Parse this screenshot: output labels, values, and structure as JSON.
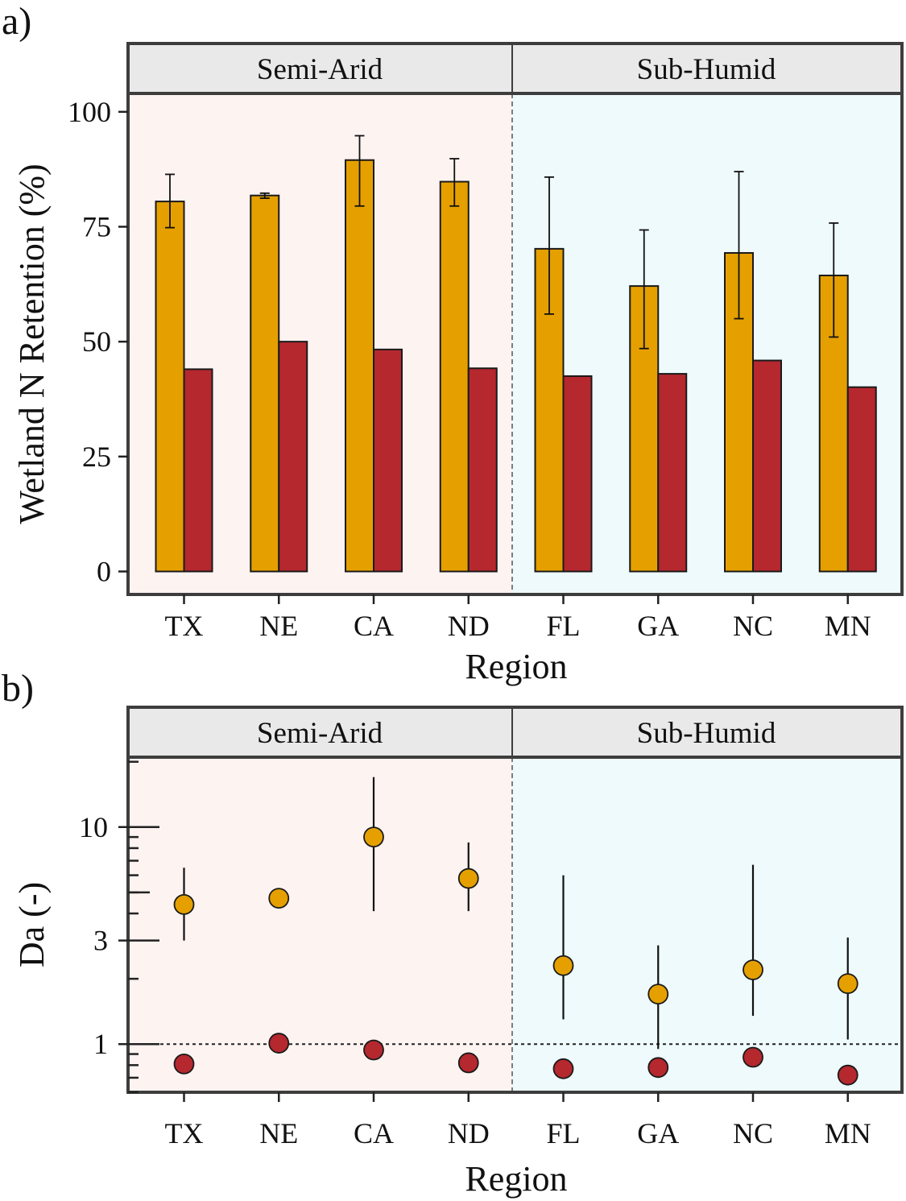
{
  "colors": {
    "series_orange": "#e5a000",
    "series_red": "#b5282e",
    "semi_arid_bg": "#fdf3f1",
    "sub_humid_bg": "#eefafc"
  },
  "chart_data": [
    {
      "panel_label": "a)",
      "type": "bar",
      "facets": [
        "Semi-Arid",
        "Sub-Humid"
      ],
      "categories": [
        "TX",
        "NE",
        "CA",
        "ND",
        "FL",
        "GA",
        "NC",
        "MN"
      ],
      "category_facet": [
        0,
        0,
        0,
        0,
        1,
        1,
        1,
        1
      ],
      "xlabel": "Region",
      "ylabel": "Wetland N Retention (%)",
      "ylim": [
        -5,
        104
      ],
      "yticks": [
        0,
        25,
        50,
        75,
        100
      ],
      "ytick_labels": [
        "0",
        "25",
        "50",
        "75",
        "100"
      ],
      "grid": false,
      "series": [
        {
          "color": "#e5a000",
          "values": [
            80.5,
            81.8,
            89.5,
            84.8,
            70.2,
            62.1,
            69.3,
            64.4
          ],
          "err_low": [
            74.8,
            81.2,
            79.5,
            79.5,
            56.0,
            48.5,
            55.0,
            51.0
          ],
          "err_high": [
            86.4,
            82.3,
            94.8,
            89.8,
            85.8,
            74.3,
            87.0,
            75.8
          ]
        },
        {
          "color": "#b5282e",
          "values": [
            44.0,
            50.0,
            48.3,
            44.2,
            42.5,
            43.0,
            45.9,
            40.1
          ]
        }
      ]
    },
    {
      "panel_label": "b)",
      "type": "scatter",
      "facets": [
        "Semi-Arid",
        "Sub-Humid"
      ],
      "categories": [
        "TX",
        "NE",
        "CA",
        "ND",
        "FL",
        "GA",
        "NC",
        "MN"
      ],
      "category_facet": [
        0,
        0,
        0,
        0,
        1,
        1,
        1,
        1
      ],
      "xlabel": "Region",
      "ylabel": "Da (-)",
      "y_scale": "log",
      "ylim": [
        0.6,
        21
      ],
      "yticks": [
        1,
        3,
        10
      ],
      "ytick_labels": [
        "1",
        "3",
        "10"
      ],
      "reference_line_y": 1,
      "grid": false,
      "series": [
        {
          "color": "#e5a000",
          "values": [
            4.4,
            4.7,
            9.0,
            5.8,
            2.3,
            1.7,
            2.2,
            1.9
          ],
          "err_low": [
            3.0,
            null,
            4.1,
            4.1,
            1.3,
            0.95,
            1.35,
            1.05
          ],
          "err_high": [
            6.5,
            null,
            17.0,
            8.5,
            6.0,
            2.85,
            6.7,
            3.1
          ]
        },
        {
          "color": "#b5282e",
          "values": [
            0.81,
            1.01,
            0.94,
            0.82,
            0.77,
            0.78,
            0.87,
            0.72
          ]
        }
      ]
    }
  ]
}
